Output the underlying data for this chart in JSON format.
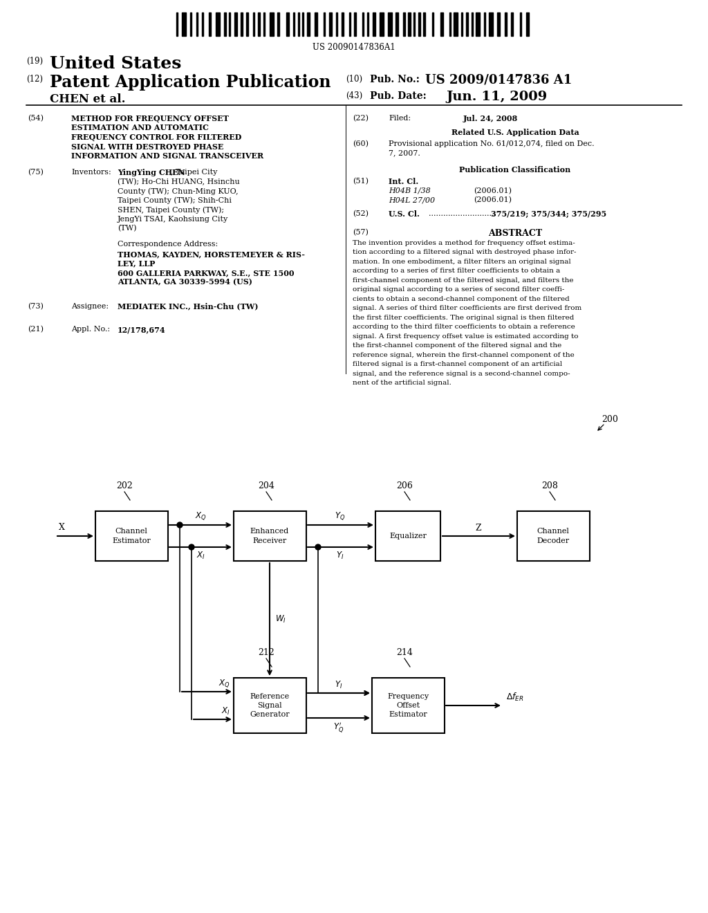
{
  "bg_color": "#ffffff",
  "barcode_text": "US 20090147836A1",
  "page_width": 10.24,
  "page_height": 13.2,
  "header": {
    "us_label": "United States",
    "patent_label": "Patent Application Publication",
    "chen": "CHEN et al.",
    "pub_no": "US 2009/0147836 A1",
    "pub_date": "Jun. 11, 2009"
  },
  "left": {
    "title_lines": [
      "METHOD FOR FREQUENCY OFFSET",
      "ESTIMATION AND AUTOMATIC",
      "FREQUENCY CONTROL FOR FILTERED",
      "SIGNAL WITH DESTROYED PHASE",
      "INFORMATION AND SIGNAL TRANSCEIVER"
    ],
    "inventors_plain": [
      "(TW); Ho-Chi HUANG, Hsinchu",
      "County (TW); Chun-Ming KUO,",
      "Taipei County (TW); Shih-Chi",
      "SHEN, Taipei County (TW);",
      "JengYi TSAI, Kaohsiung City",
      "(TW)"
    ],
    "corr_lines": [
      "THOMAS, KAYDEN, HORSTEMEYER & RIS-",
      "LEY, LLP",
      "600 GALLERIA PARKWAY, S.E., STE 1500",
      "ATLANTA, GA 30339-5994 (US)"
    ],
    "assignee": "MEDIATEK INC., Hsin-Chu (TW)",
    "appl_no": "12/178,674"
  },
  "right": {
    "filed_date": "Jul. 24, 2008",
    "provisional": "Provisional application No. 61/012,074, filed on Dec.\n7, 2007.",
    "h04b": "H04B 1/38",
    "h04b_year": "(2006.01)",
    "h04l": "H04L 27/00",
    "h04l_year": "(2006.01)",
    "us_cl": "375/219; 375/344; 375/295",
    "abstract_lines": [
      "The invention provides a method for frequency offset estima-",
      "tion according to a filtered signal with destroyed phase infor-",
      "mation. In one embodiment, a filter filters an original signal",
      "according to a series of first filter coefficients to obtain a",
      "first-channel component of the filtered signal, and filters the",
      "original signal according to a series of second filter coeffi-",
      "cients to obtain a second-channel component of the filtered",
      "signal. A series of third filter coefficients are first derived from",
      "the first filter coefficients. The original signal is then filtered",
      "according to the third filter coefficients to obtain a reference",
      "signal. A first frequency offset value is estimated according to",
      "the first-channel component of the filtered signal and the",
      "reference signal, wherein the first-channel component of the",
      "filtered signal is a first-channel component of an artificial",
      "signal, and the reference signal is a second-channel compo-",
      "nent of the artificial signal."
    ]
  }
}
